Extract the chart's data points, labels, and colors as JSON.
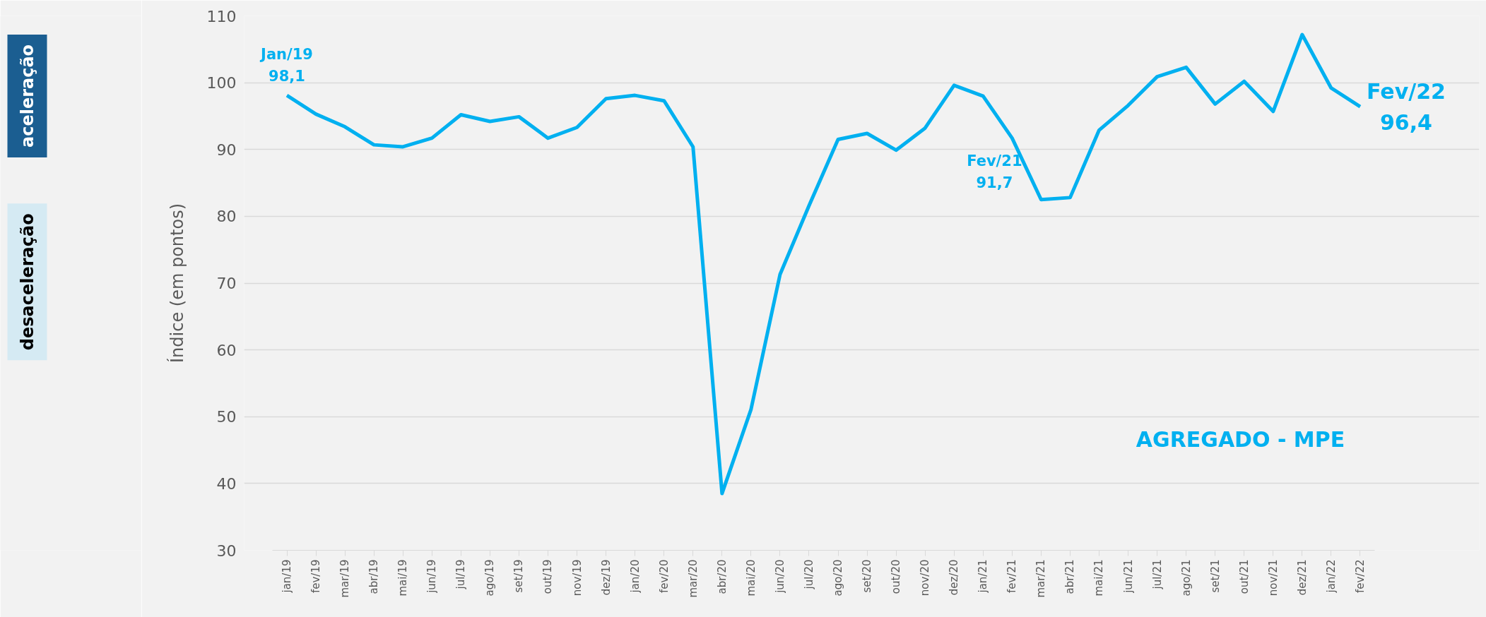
{
  "chart_data": {
    "type": "line",
    "ylabel": "Índice (em pontos)",
    "categories": [
      "jan/19",
      "fev/19",
      "mar/19",
      "abr/19",
      "mai/19",
      "jun/19",
      "jul/19",
      "ago/19",
      "set/19",
      "out/19",
      "nov/19",
      "dez/19",
      "jan/20",
      "fev/20",
      "mar/20",
      "abr/20",
      "mai/20",
      "jun/20",
      "jul/20",
      "ago/20",
      "set/20",
      "out/20",
      "nov/20",
      "dez/20",
      "jan/21",
      "fev/21",
      "mar/21",
      "abr/21",
      "mai/21",
      "jun/21",
      "jul/21",
      "ago/21",
      "set/21",
      "out/21",
      "nov/21",
      "dez/21",
      "jan/22",
      "fev/22"
    ],
    "series": [
      {
        "color": "#00b0f0",
        "values": [
          98.1,
          95.3,
          93.4,
          90.7,
          90.4,
          91.7,
          95.2,
          94.2,
          94.9,
          91.7,
          93.3,
          97.6,
          98.1,
          97.3,
          90.4,
          38.5,
          51.1,
          71.3,
          81.6,
          91.5,
          92.4,
          89.9,
          93.2,
          99.6,
          98.0,
          91.7,
          82.5,
          82.8,
          92.9,
          96.6,
          100.9,
          102.3,
          96.8,
          100.2,
          95.7,
          107.2,
          99.2,
          96.4
        ],
        "value_labels": [
          "Jan/19\n98,1",
          null,
          null,
          null,
          null,
          null,
          null,
          null,
          null,
          null,
          null,
          null,
          null,
          null,
          null,
          null,
          null,
          null,
          null,
          null,
          null,
          null,
          null,
          null,
          null,
          "Fev/21\n91,7",
          null,
          null,
          null,
          null,
          null,
          null,
          null,
          null,
          null,
          null,
          null,
          "Fev/22\n96,4"
        ]
      }
    ],
    "ylim": [
      30,
      110
    ],
    "yticks": [
      30,
      40,
      50,
      60,
      70,
      80,
      90,
      100,
      110
    ],
    "grid": "y",
    "marker": "none",
    "line_style": "solid",
    "annotations": [
      "AGREGADO - MPE",
      "aceleração",
      "desaceleração"
    ]
  }
}
